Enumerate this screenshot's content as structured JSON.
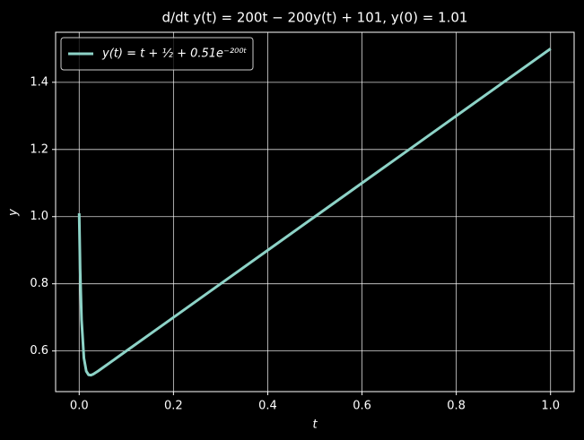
{
  "chart_data": {
    "type": "line",
    "title": "d/dt y(t) = 200t − 200y(t) + 101, y(0) = 1.01",
    "x_label": "t",
    "y_label": "y",
    "x": [
      0,
      0.002,
      0.005,
      0.01,
      0.015,
      0.02,
      0.025,
      0.03,
      0.04,
      0.05,
      0.1,
      0.2,
      0.3,
      0.4,
      0.5,
      0.6,
      0.7,
      0.8,
      0.9,
      1.0
    ],
    "series": [
      {
        "name": "y(t) = t + ½ + 0.51e⁻²⁰⁰ᵗ",
        "color": "#8dd3c7",
        "values": [
          1.01,
          0.844,
          0.693,
          0.579,
          0.54,
          0.529,
          0.528,
          0.531,
          0.54,
          0.55,
          0.6,
          0.7,
          0.8,
          0.9,
          1.0,
          1.1,
          1.2,
          1.3,
          1.4,
          1.5
        ]
      }
    ],
    "xlim": [
      -0.05,
      1.05
    ],
    "ylim": [
      0.479,
      1.549
    ],
    "xticks": [
      {
        "value": 0,
        "label": "0.0"
      },
      0.2,
      0.4,
      0.6,
      0.8,
      {
        "value": 1,
        "label": "1.0"
      }
    ],
    "yticks": [
      0.6,
      0.8,
      {
        "value": 1,
        "label": "1.0"
      },
      1.2,
      1.4
    ],
    "grid": true,
    "legend_position": "upper left"
  }
}
